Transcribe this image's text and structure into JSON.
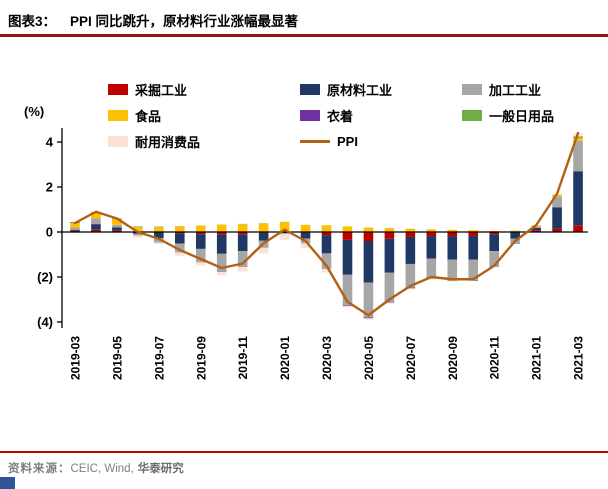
{
  "header": {
    "figure_label": "图表3：",
    "title": "PPI 同比跳升，原材料行业涨幅最显著"
  },
  "footer": {
    "source_label": "资料来源：",
    "source_text": "CEIC, Wind,",
    "brand": "华泰研究"
  },
  "chart_data": {
    "type": "bar",
    "subtype": "stacked-bar-with-line",
    "title": "PPI 同比跳升，原材料行业涨幅最显著",
    "unit_label": "(%)",
    "legend_position": "top",
    "grid": false,
    "ylim": [
      -4.5,
      5
    ],
    "y_ticks": [
      4,
      2,
      0,
      -2,
      -4
    ],
    "y_tick_labels": [
      "4",
      "2",
      "0",
      "(2)",
      "(4)"
    ],
    "categories": [
      "2019-03",
      "2019-04",
      "2019-05",
      "2019-06",
      "2019-07",
      "2019-08",
      "2019-09",
      "2019-10",
      "2019-11",
      "2019-12",
      "2020-01",
      "2020-02",
      "2020-03",
      "2020-04",
      "2020-05",
      "2020-06",
      "2020-07",
      "2020-08",
      "2020-09",
      "2020-10",
      "2020-11",
      "2020-12",
      "2021-01",
      "2021-02",
      "2021-03"
    ],
    "x_tick_labels_shown": [
      "2019-03",
      "2019-05",
      "2019-07",
      "2019-09",
      "2019-11",
      "2020-01",
      "2020-03",
      "2020-05",
      "2020-07",
      "2020-09",
      "2020-11",
      "2021-01",
      "2021-03"
    ],
    "series": [
      {
        "name": "采掘工业",
        "color": "#C00000",
        "values": [
          0.05,
          0.1,
          0.08,
          0.02,
          -0.02,
          -0.06,
          -0.1,
          -0.12,
          -0.1,
          -0.04,
          0.04,
          -0.04,
          -0.15,
          -0.35,
          -0.4,
          -0.3,
          -0.22,
          -0.18,
          -0.18,
          -0.18,
          -0.1,
          0.02,
          0.08,
          0.15,
          0.3
        ]
      },
      {
        "name": "原材料工业",
        "color": "#1F3864",
        "values": [
          0.05,
          0.25,
          0.12,
          -0.08,
          -0.25,
          -0.45,
          -0.65,
          -0.85,
          -0.75,
          -0.35,
          -0.05,
          -0.25,
          -0.8,
          -1.55,
          -1.85,
          -1.5,
          -1.2,
          -1.0,
          -1.05,
          -1.05,
          -0.75,
          -0.3,
          0.1,
          0.95,
          2.4
        ]
      },
      {
        "name": "加工工业",
        "color": "#A6A6A6",
        "values": [
          0.1,
          0.25,
          0.12,
          -0.08,
          -0.2,
          -0.4,
          -0.6,
          -0.8,
          -0.7,
          -0.3,
          -0.05,
          -0.2,
          -0.65,
          -1.35,
          -1.55,
          -1.3,
          -1.05,
          -0.85,
          -0.9,
          -0.9,
          -0.65,
          -0.2,
          0.05,
          0.45,
          1.35
        ]
      },
      {
        "name": "食品",
        "color": "#FFC000",
        "values": [
          0.2,
          0.25,
          0.25,
          0.2,
          0.22,
          0.25,
          0.28,
          0.32,
          0.35,
          0.38,
          0.4,
          0.32,
          0.3,
          0.25,
          0.2,
          0.18,
          0.15,
          0.12,
          0.1,
          0.08,
          0.05,
          0.04,
          0.05,
          0.08,
          0.15
        ]
      },
      {
        "name": "衣着",
        "color": "#7030A0",
        "values": [
          0.02,
          0.02,
          0.02,
          0.01,
          0.01,
          0.0,
          0.0,
          -0.01,
          -0.01,
          -0.01,
          0.0,
          -0.01,
          -0.02,
          -0.03,
          -0.03,
          -0.03,
          -0.03,
          -0.03,
          -0.03,
          -0.03,
          -0.03,
          -0.02,
          -0.02,
          -0.01,
          0.02
        ]
      },
      {
        "name": "一般日用品",
        "color": "#70AD47",
        "values": [
          0.02,
          0.02,
          0.02,
          0.02,
          0.01,
          0.01,
          0.01,
          0.01,
          0.01,
          0.01,
          0.01,
          0.0,
          0.0,
          -0.01,
          -0.01,
          -0.01,
          -0.01,
          -0.01,
          -0.01,
          -0.01,
          -0.01,
          0.0,
          0.01,
          0.02,
          0.03
        ]
      },
      {
        "name": "耐用消费品",
        "color": "#FBE2D5",
        "values": [
          -0.04,
          -0.04,
          -0.05,
          -0.09,
          -0.07,
          -0.15,
          -0.14,
          -0.15,
          -0.2,
          -0.25,
          -0.25,
          -0.22,
          -0.18,
          -0.06,
          -0.06,
          -0.04,
          -0.04,
          -0.05,
          -0.03,
          -0.01,
          -0.01,
          0.02,
          0.03,
          0.06,
          0.15
        ]
      }
    ],
    "line": {
      "name": "PPI",
      "color": "#B26114",
      "values": [
        0.4,
        0.9,
        0.6,
        0.0,
        -0.3,
        -0.8,
        -1.2,
        -1.6,
        -1.4,
        -0.5,
        0.1,
        -0.4,
        -1.5,
        -3.1,
        -3.7,
        -3.0,
        -2.4,
        -2.0,
        -2.1,
        -2.1,
        -1.5,
        -0.4,
        0.3,
        1.7,
        4.4
      ]
    }
  }
}
